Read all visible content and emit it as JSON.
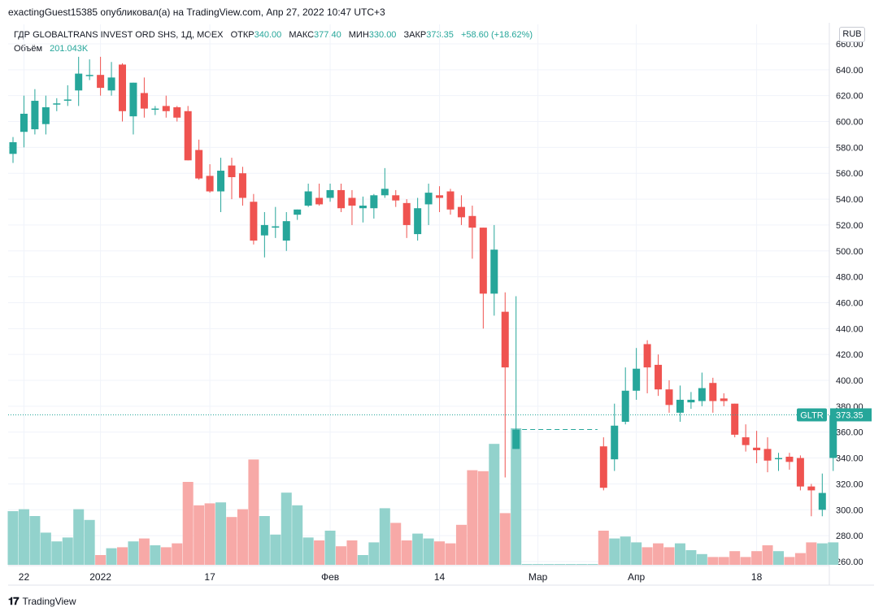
{
  "header": {
    "publish_line": "exactingGuest15385 опубликовал(а) на TradingView.com, Апр 27, 2022 10:47 UTC+3"
  },
  "legend": {
    "symbol": "ГДР GLOBALTRANS INVEST ORD SHS, 1Д, MOEX",
    "open_label": "ОТКР",
    "open_value": "340.00",
    "high_label": "МАКС",
    "high_value": "377.40",
    "low_label": "МИН",
    "low_value": "330.00",
    "close_label": "ЗАКР",
    "close_value": "373.35",
    "change": "+58.60 (+18.62%)",
    "volume_label": "Объём",
    "volume_value": "201.043K"
  },
  "currency": "RUB",
  "footer": {
    "brand": "TradingView"
  },
  "colors": {
    "up": "#26a69a",
    "down": "#ef5350",
    "up_vol": "#92d2cc",
    "down_vol": "#f7a9a7",
    "grid": "#f0f3fa"
  },
  "chart_data": {
    "type": "candlestick",
    "symbol": "GLTR",
    "last_price": "373.35",
    "y_range": [
      260,
      665
    ],
    "y_ticks": [
      "260.00",
      "280.00",
      "300.00",
      "320.00",
      "340.00",
      "360.00",
      "380.00",
      "400.00",
      "420.00",
      "440.00",
      "460.00",
      "480.00",
      "500.00",
      "520.00",
      "540.00",
      "560.00",
      "580.00",
      "600.00",
      "620.00",
      "640.00",
      "660.00"
    ],
    "x_labels": [
      {
        "label": "22",
        "index": 1
      },
      {
        "label": "2022",
        "index": 8
      },
      {
        "label": "17",
        "index": 18
      },
      {
        "label": "Фев",
        "index": 29
      },
      {
        "label": "14",
        "index": 39
      },
      {
        "label": "Мар",
        "index": 48
      },
      {
        "label": "Апр",
        "index": 57
      },
      {
        "label": "18",
        "index": 68
      }
    ],
    "candles": [
      {
        "o": 575,
        "h": 588,
        "l": 568,
        "c": 584,
        "v": 55
      },
      {
        "o": 592,
        "h": 620,
        "l": 580,
        "c": 606,
        "v": 57
      },
      {
        "o": 594,
        "h": 625,
        "l": 590,
        "c": 616,
        "v": 50
      },
      {
        "o": 598,
        "h": 620,
        "l": 590,
        "c": 611,
        "v": 33
      },
      {
        "o": 614,
        "h": 618,
        "l": 608,
        "c": 614,
        "v": 24
      },
      {
        "o": 617,
        "h": 628,
        "l": 612,
        "c": 617,
        "v": 28
      },
      {
        "o": 624,
        "h": 650,
        "l": 612,
        "c": 637,
        "v": 57
      },
      {
        "o": 636,
        "h": 648,
        "l": 632,
        "c": 636,
        "v": 46
      },
      {
        "o": 636,
        "h": 650,
        "l": 620,
        "c": 626,
        "v": 10
      },
      {
        "o": 624,
        "h": 646,
        "l": 620,
        "c": 634,
        "v": 17
      },
      {
        "o": 644,
        "h": 645,
        "l": 600,
        "c": 608,
        "v": 18
      },
      {
        "o": 604,
        "h": 630,
        "l": 590,
        "c": 630,
        "v": 24
      },
      {
        "o": 622,
        "h": 634,
        "l": 603,
        "c": 610,
        "v": 27
      },
      {
        "o": 610,
        "h": 612,
        "l": 605,
        "c": 610,
        "v": 20
      },
      {
        "o": 612,
        "h": 620,
        "l": 603,
        "c": 608,
        "v": 18
      },
      {
        "o": 611,
        "h": 612,
        "l": 600,
        "c": 603,
        "v": 22
      },
      {
        "o": 608,
        "h": 612,
        "l": 570,
        "c": 570,
        "v": 85
      },
      {
        "o": 578,
        "h": 586,
        "l": 555,
        "c": 556,
        "v": 61
      },
      {
        "o": 558,
        "h": 567,
        "l": 545,
        "c": 546,
        "v": 63
      },
      {
        "o": 546,
        "h": 572,
        "l": 530,
        "c": 562,
        "v": 64
      },
      {
        "o": 566,
        "h": 572,
        "l": 540,
        "c": 557,
        "v": 49
      },
      {
        "o": 560,
        "h": 565,
        "l": 535,
        "c": 541,
        "v": 57
      },
      {
        "o": 538,
        "h": 544,
        "l": 505,
        "c": 508,
        "v": 108
      },
      {
        "o": 512,
        "h": 530,
        "l": 495,
        "c": 520,
        "v": 50
      },
      {
        "o": 518,
        "h": 534,
        "l": 510,
        "c": 519,
        "v": 31
      },
      {
        "o": 508,
        "h": 530,
        "l": 500,
        "c": 523,
        "v": 74
      },
      {
        "o": 528,
        "h": 532,
        "l": 524,
        "c": 532,
        "v": 61
      },
      {
        "o": 535,
        "h": 552,
        "l": 534,
        "c": 546,
        "v": 28
      },
      {
        "o": 541,
        "h": 552,
        "l": 535,
        "c": 536,
        "v": 25
      },
      {
        "o": 541,
        "h": 552,
        "l": 538,
        "c": 547,
        "v": 35
      },
      {
        "o": 547,
        "h": 552,
        "l": 530,
        "c": 533,
        "v": 19
      },
      {
        "o": 541,
        "h": 547,
        "l": 520,
        "c": 535,
        "v": 25
      },
      {
        "o": 533,
        "h": 542,
        "l": 522,
        "c": 535,
        "v": 10
      },
      {
        "o": 533,
        "h": 544,
        "l": 525,
        "c": 543,
        "v": 23
      },
      {
        "o": 543,
        "h": 564,
        "l": 541,
        "c": 548,
        "v": 58
      },
      {
        "o": 543,
        "h": 547,
        "l": 534,
        "c": 539,
        "v": 43
      },
      {
        "o": 537,
        "h": 540,
        "l": 510,
        "c": 520,
        "v": 25
      },
      {
        "o": 513,
        "h": 541,
        "l": 508,
        "c": 533,
        "v": 32
      },
      {
        "o": 536,
        "h": 552,
        "l": 520,
        "c": 545,
        "v": 27
      },
      {
        "o": 543,
        "h": 550,
        "l": 530,
        "c": 541,
        "v": 24
      },
      {
        "o": 546,
        "h": 548,
        "l": 528,
        "c": 532,
        "v": 22
      },
      {
        "o": 534,
        "h": 543,
        "l": 520,
        "c": 526,
        "v": 41
      },
      {
        "o": 527,
        "h": 535,
        "l": 494,
        "c": 518,
        "v": 97
      },
      {
        "o": 518,
        "h": 518,
        "l": 440,
        "c": 467,
        "v": 96
      },
      {
        "o": 467,
        "h": 520,
        "l": 450,
        "c": 501,
        "v": 124
      },
      {
        "o": 453,
        "h": 468,
        "l": 325,
        "c": 410,
        "v": 53
      },
      {
        "o": 347,
        "h": 465,
        "l": 347,
        "c": 362,
        "v": 140
      },
      {
        "o": 362,
        "h": 362,
        "l": 362,
        "c": 362,
        "v": 0,
        "flat": true
      },
      {
        "o": 362,
        "h": 362,
        "l": 362,
        "c": 362,
        "v": 0,
        "flat": true
      },
      {
        "o": 362,
        "h": 362,
        "l": 362,
        "c": 362,
        "v": 0,
        "flat": true
      },
      {
        "o": 362,
        "h": 362,
        "l": 362,
        "c": 362,
        "v": 0,
        "flat": true
      },
      {
        "o": 362,
        "h": 362,
        "l": 362,
        "c": 362,
        "v": 0,
        "flat": true
      },
      {
        "o": 362,
        "h": 362,
        "l": 362,
        "c": 362,
        "v": 0,
        "flat": true
      },
      {
        "o": 362,
        "h": 362,
        "l": 362,
        "c": 362,
        "v": 0,
        "flat": true
      },
      {
        "o": 349,
        "h": 356,
        "l": 315,
        "c": 317,
        "v": 35
      },
      {
        "o": 339,
        "h": 382,
        "l": 330,
        "c": 365,
        "v": 27
      },
      {
        "o": 368,
        "h": 410,
        "l": 366,
        "c": 392,
        "v": 29
      },
      {
        "o": 392,
        "h": 425,
        "l": 385,
        "c": 409,
        "v": 23
      },
      {
        "o": 428,
        "h": 431,
        "l": 390,
        "c": 410,
        "v": 18
      },
      {
        "o": 412,
        "h": 420,
        "l": 388,
        "c": 393,
        "v": 22
      },
      {
        "o": 393,
        "h": 400,
        "l": 375,
        "c": 381,
        "v": 18
      },
      {
        "o": 375,
        "h": 396,
        "l": 368,
        "c": 385,
        "v": 22
      },
      {
        "o": 383,
        "h": 391,
        "l": 378,
        "c": 385,
        "v": 15
      },
      {
        "o": 384,
        "h": 406,
        "l": 380,
        "c": 394,
        "v": 11
      },
      {
        "o": 398,
        "h": 402,
        "l": 375,
        "c": 384,
        "v": 8
      },
      {
        "o": 386,
        "h": 390,
        "l": 380,
        "c": 384,
        "v": 8
      },
      {
        "o": 382,
        "h": 378,
        "l": 356,
        "c": 358,
        "v": 14
      },
      {
        "o": 356,
        "h": 366,
        "l": 345,
        "c": 350,
        "v": 8
      },
      {
        "o": 348,
        "h": 361,
        "l": 336,
        "c": 346,
        "v": 14
      },
      {
        "o": 347,
        "h": 356,
        "l": 329,
        "c": 338,
        "v": 20
      },
      {
        "o": 340,
        "h": 344,
        "l": 330,
        "c": 340,
        "v": 14
      },
      {
        "o": 341,
        "h": 344,
        "l": 331,
        "c": 337,
        "v": 8
      },
      {
        "o": 340,
        "h": 342,
        "l": 315,
        "c": 318,
        "v": 12
      },
      {
        "o": 318,
        "h": 320,
        "l": 295,
        "c": 315,
        "v": 23
      },
      {
        "o": 300,
        "h": 328,
        "l": 295,
        "c": 313,
        "v": 22
      },
      {
        "o": 340,
        "h": 377,
        "l": 330,
        "c": 373,
        "v": 23
      }
    ]
  }
}
